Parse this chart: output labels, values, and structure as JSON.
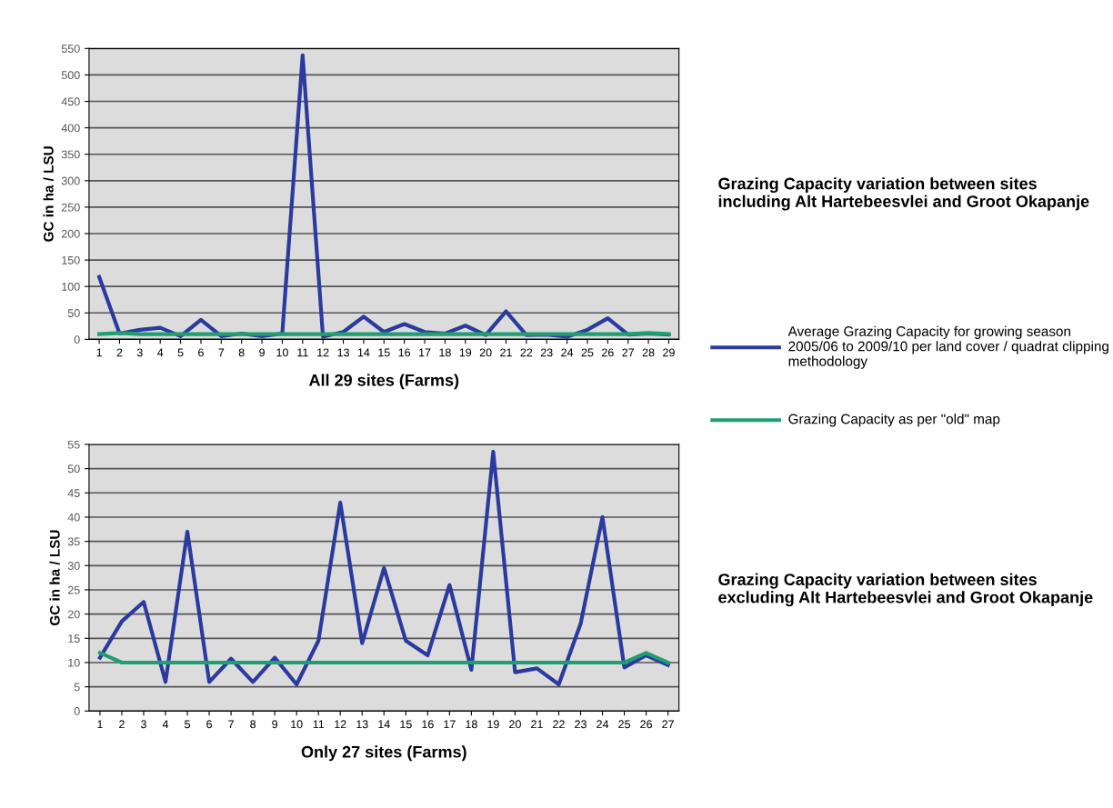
{
  "chart_data": [
    {
      "type": "line",
      "xlabel": "All 29 sites (Farms)",
      "ylabel": "GC in ha / LSU",
      "categories": [
        "1",
        "2",
        "3",
        "4",
        "5",
        "6",
        "7",
        "8",
        "9",
        "10",
        "11",
        "12",
        "13",
        "14",
        "15",
        "16",
        "17",
        "18",
        "19",
        "20",
        "21",
        "22",
        "23",
        "24",
        "25",
        "26",
        "27",
        "28",
        "29"
      ],
      "series": [
        {
          "name": "Average Grazing Capacity for growing season 2005/06 to 2009/10 per land cover / quadrat clipping methodology",
          "color": "#2b3a9e",
          "values": [
            118,
            11,
            18,
            22,
            6,
            37,
            6,
            11,
            6,
            11,
            537,
            5,
            14,
            43,
            14,
            29,
            14,
            11,
            26,
            8,
            53,
            8,
            9,
            5,
            18,
            40,
            9,
            11,
            9
          ]
        },
        {
          "name": "Grazing Capacity as per \"old\" map",
          "color": "#1f9e70",
          "values": [
            10,
            12,
            10,
            10,
            10,
            10,
            10,
            10,
            10,
            10,
            10,
            10,
            10,
            10,
            10,
            10,
            10,
            10,
            10,
            10,
            10,
            10,
            10,
            10,
            10,
            10,
            10,
            12,
            10
          ]
        }
      ],
      "ylim": [
        0,
        550
      ],
      "yticks": [
        0,
        50,
        100,
        150,
        200,
        250,
        300,
        350,
        400,
        450,
        500,
        550
      ],
      "grid": "y",
      "legend": "right",
      "annotations": [
        "Grazing Capacity variation between sites including Alt Hartebeesvlei and Groot Okapanje"
      ]
    },
    {
      "type": "line",
      "xlabel": "Only 27 sites (Farms)",
      "ylabel": "GC in ha / LSU",
      "categories": [
        "1",
        "2",
        "3",
        "4",
        "5",
        "6",
        "7",
        "8",
        "9",
        "10",
        "11",
        "12",
        "13",
        "14",
        "15",
        "16",
        "17",
        "18",
        "19",
        "20",
        "21",
        "22",
        "23",
        "24",
        "25",
        "26",
        "27"
      ],
      "series": [
        {
          "color": "#2b3a9e",
          "values": [
            11,
            18.5,
            22.5,
            6,
            37,
            6,
            10.8,
            6,
            11,
            5.5,
            14.5,
            43,
            14,
            29.5,
            14.5,
            11.5,
            26,
            8.5,
            53.5,
            8,
            8.8,
            5.5,
            18,
            40,
            9,
            11.5,
            9.5
          ]
        },
        {
          "color": "#1f9e70",
          "values": [
            12,
            10,
            10,
            10,
            10,
            10,
            10,
            10,
            10,
            10,
            10,
            10,
            10,
            10,
            10,
            10,
            10,
            10,
            10,
            10,
            10,
            10,
            10,
            10,
            10,
            12,
            10
          ]
        }
      ],
      "ylim": [
        0,
        55
      ],
      "yticks": [
        0,
        5,
        10,
        15,
        20,
        25,
        30,
        35,
        40,
        45,
        50,
        55
      ],
      "grid": "y",
      "annotations": [
        "Grazing Capacity variation between sites excluding Alt Hartebeesvlei and Groot Okapanje"
      ]
    }
  ]
}
